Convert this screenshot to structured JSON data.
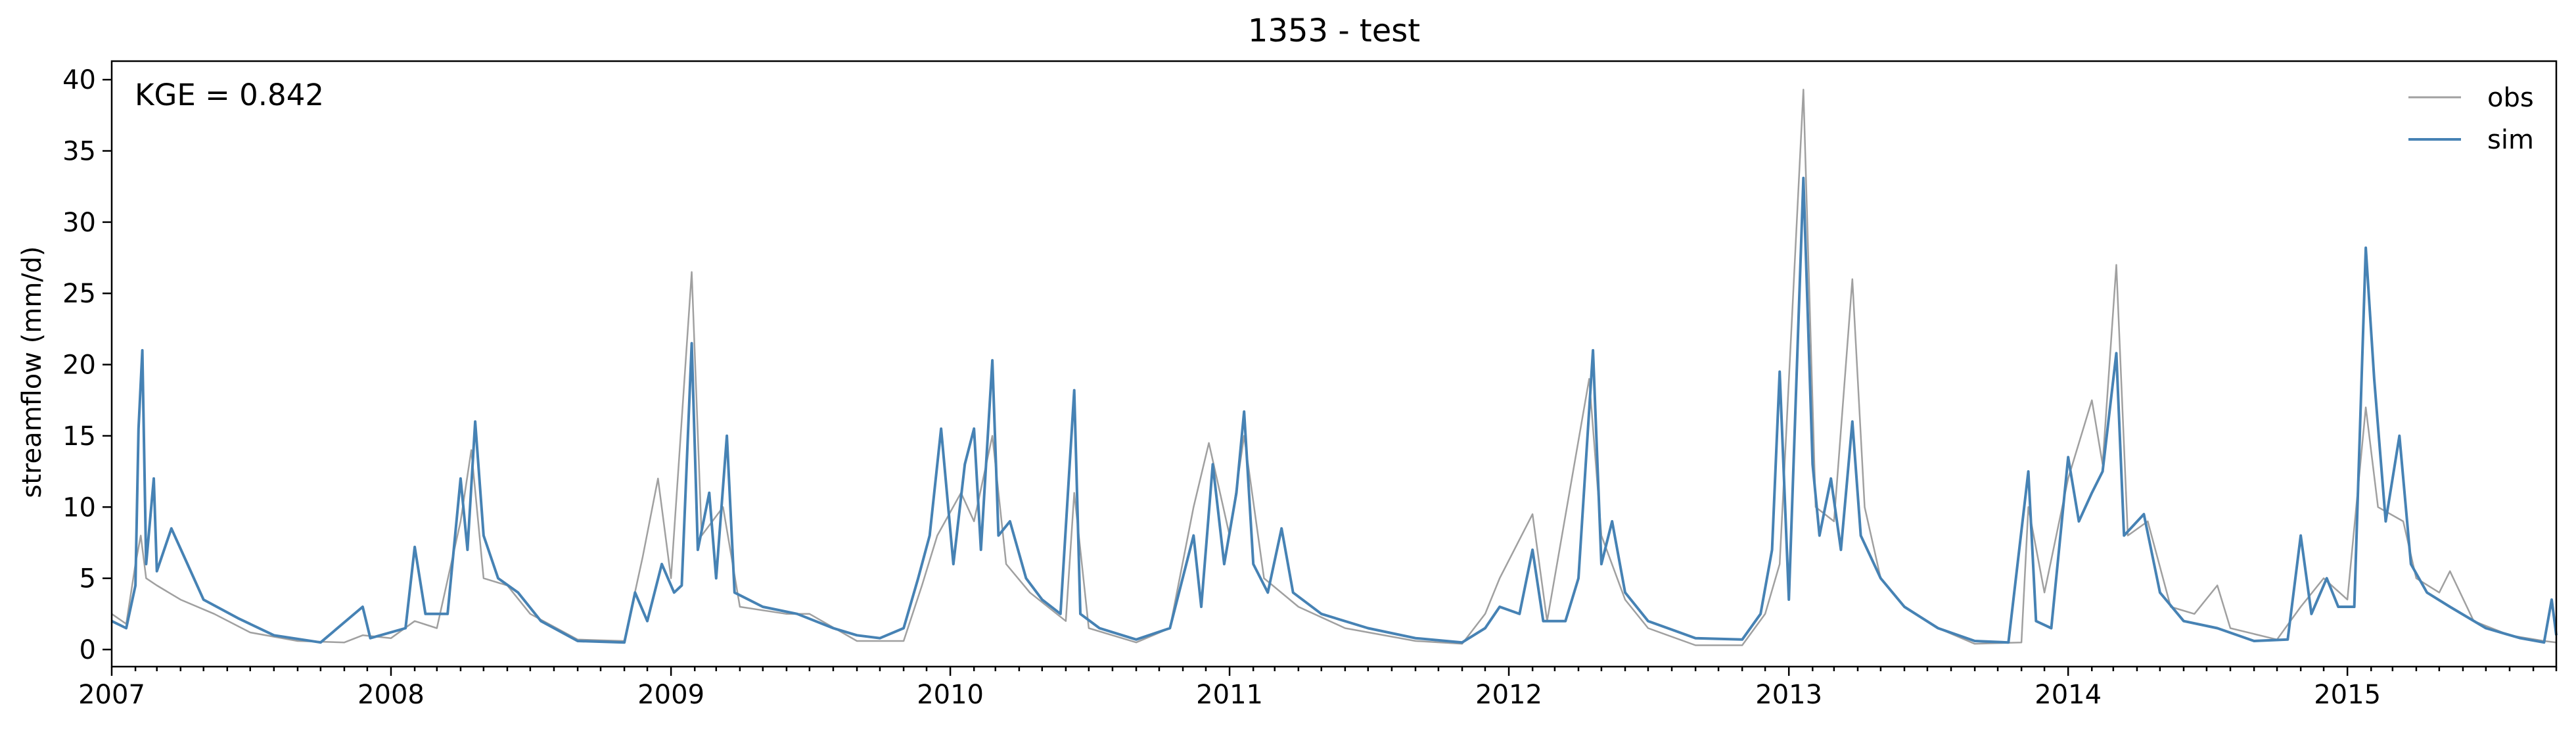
{
  "chart_data": {
    "type": "line",
    "title": "1353 - test",
    "ylabel": "streamflow (mm/d)",
    "xlabel": "",
    "annotation": "KGE = 0.842",
    "x_range": [
      "2007-01-01",
      "2015-10-01"
    ],
    "ylim": [
      -1.2,
      41.3
    ],
    "x_ticks": [
      "2007",
      "2008",
      "2009",
      "2010",
      "2011",
      "2012",
      "2013",
      "2014",
      "2015"
    ],
    "y_ticks": [
      "0",
      "5",
      "10",
      "15",
      "20",
      "25",
      "30",
      "35",
      "40"
    ],
    "y_tick_values": [
      0,
      5,
      10,
      15,
      20,
      25,
      30,
      35,
      40
    ],
    "legend_position": "top-right",
    "grid": false,
    "series": [
      {
        "name": "obs",
        "color": "#a0a0a0",
        "points": [
          [
            "2007-01-01",
            2.5
          ],
          [
            "2007-01-20",
            1.8
          ],
          [
            "2007-02-01",
            6
          ],
          [
            "2007-02-08",
            8
          ],
          [
            "2007-02-15",
            5
          ],
          [
            "2007-03-01",
            4.5
          ],
          [
            "2007-04-01",
            3.5
          ],
          [
            "2007-05-15",
            2.5
          ],
          [
            "2007-07-01",
            1.2
          ],
          [
            "2007-09-01",
            0.6
          ],
          [
            "2007-11-01",
            0.5
          ],
          [
            "2007-11-25",
            1.0
          ],
          [
            "2008-01-01",
            0.8
          ],
          [
            "2008-02-01",
            2.0
          ],
          [
            "2008-03-01",
            1.5
          ],
          [
            "2008-04-01",
            9
          ],
          [
            "2008-04-15",
            14
          ],
          [
            "2008-05-01",
            5
          ],
          [
            "2008-06-01",
            4.5
          ],
          [
            "2008-07-01",
            2.5
          ],
          [
            "2008-09-01",
            0.7
          ],
          [
            "2008-11-01",
            0.6
          ],
          [
            "2008-11-25",
            6.5
          ],
          [
            "2008-12-15",
            12
          ],
          [
            "2009-01-01",
            5
          ],
          [
            "2009-01-28",
            26.5
          ],
          [
            "2009-02-10",
            8
          ],
          [
            "2009-03-10",
            10
          ],
          [
            "2009-04-01",
            3
          ],
          [
            "2009-06-01",
            2.5
          ],
          [
            "2009-07-01",
            2.5
          ],
          [
            "2009-09-01",
            0.6
          ],
          [
            "2009-11-01",
            0.6
          ],
          [
            "2009-11-25",
            4.5
          ],
          [
            "2009-12-15",
            8
          ],
          [
            "2010-01-15",
            11
          ],
          [
            "2010-02-01",
            9
          ],
          [
            "2010-02-25",
            15
          ],
          [
            "2010-03-15",
            6
          ],
          [
            "2010-04-15",
            4
          ],
          [
            "2010-06-01",
            2
          ],
          [
            "2010-06-12",
            11
          ],
          [
            "2010-07-01",
            1.5
          ],
          [
            "2010-09-01",
            0.5
          ],
          [
            "2010-10-15",
            1.5
          ],
          [
            "2010-11-15",
            10
          ],
          [
            "2010-12-05",
            14.5
          ],
          [
            "2011-01-01",
            8
          ],
          [
            "2011-01-20",
            15
          ],
          [
            "2011-02-15",
            5
          ],
          [
            "2011-04-01",
            3
          ],
          [
            "2011-06-01",
            1.5
          ],
          [
            "2011-09-01",
            0.6
          ],
          [
            "2011-11-01",
            0.4
          ],
          [
            "2011-12-01",
            2.5
          ],
          [
            "2011-12-20",
            5
          ],
          [
            "2012-02-01",
            9.5
          ],
          [
            "2012-02-20",
            2
          ],
          [
            "2012-04-15",
            19
          ],
          [
            "2012-05-01",
            8
          ],
          [
            "2012-06-01",
            3.5
          ],
          [
            "2012-07-01",
            1.5
          ],
          [
            "2012-09-01",
            0.3
          ],
          [
            "2012-11-01",
            0.3
          ],
          [
            "2012-12-01",
            2.5
          ],
          [
            "2012-12-20",
            6
          ],
          [
            "2013-01-20",
            39.3
          ],
          [
            "2013-02-05",
            10
          ],
          [
            "2013-03-01",
            9
          ],
          [
            "2013-03-25",
            26
          ],
          [
            "2013-04-10",
            10
          ],
          [
            "2013-05-01",
            5
          ],
          [
            "2013-06-01",
            3
          ],
          [
            "2013-07-15",
            1.5
          ],
          [
            "2013-09-01",
            0.4
          ],
          [
            "2013-11-01",
            0.5
          ],
          [
            "2013-11-10",
            10
          ],
          [
            "2013-12-01",
            4
          ],
          [
            "2014-01-01",
            12
          ],
          [
            "2014-02-01",
            17.5
          ],
          [
            "2014-02-15",
            13
          ],
          [
            "2014-03-05",
            27
          ],
          [
            "2014-03-20",
            8
          ],
          [
            "2014-04-15",
            9
          ],
          [
            "2014-05-15",
            3
          ],
          [
            "2014-06-15",
            2.5
          ],
          [
            "2014-07-15",
            4.5
          ],
          [
            "2014-08-01",
            1.5
          ],
          [
            "2014-10-01",
            0.7
          ],
          [
            "2014-11-01",
            3
          ],
          [
            "2014-12-01",
            5
          ],
          [
            "2015-01-01",
            3.5
          ],
          [
            "2015-01-25",
            17
          ],
          [
            "2015-02-10",
            10
          ],
          [
            "2015-03-15",
            9
          ],
          [
            "2015-04-01",
            5
          ],
          [
            "2015-05-01",
            4
          ],
          [
            "2015-05-15",
            5.5
          ],
          [
            "2015-06-15",
            2
          ],
          [
            "2015-08-01",
            1
          ],
          [
            "2015-09-15",
            0.6
          ],
          [
            "2015-10-01",
            0.5
          ]
        ]
      },
      {
        "name": "sim",
        "color": "#4682b4",
        "points": [
          [
            "2007-01-01",
            2.0
          ],
          [
            "2007-01-20",
            1.5
          ],
          [
            "2007-02-01",
            4.5
          ],
          [
            "2007-02-05",
            15.5
          ],
          [
            "2007-02-10",
            21
          ],
          [
            "2007-02-15",
            6
          ],
          [
            "2007-02-25",
            12
          ],
          [
            "2007-03-01",
            5.5
          ],
          [
            "2007-03-20",
            8.5
          ],
          [
            "2007-04-10",
            6
          ],
          [
            "2007-05-01",
            3.5
          ],
          [
            "2007-06-15",
            2.2
          ],
          [
            "2007-08-01",
            1.0
          ],
          [
            "2007-10-01",
            0.5
          ],
          [
            "2007-11-25",
            3
          ],
          [
            "2007-12-05",
            0.8
          ],
          [
            "2008-01-20",
            1.5
          ],
          [
            "2008-02-01",
            7.2
          ],
          [
            "2008-02-15",
            2.5
          ],
          [
            "2008-03-15",
            2.5
          ],
          [
            "2008-04-01",
            12
          ],
          [
            "2008-04-10",
            7
          ],
          [
            "2008-04-20",
            16
          ],
          [
            "2008-05-01",
            8
          ],
          [
            "2008-05-20",
            5
          ],
          [
            "2008-06-15",
            4
          ],
          [
            "2008-07-15",
            2.0
          ],
          [
            "2008-09-01",
            0.6
          ],
          [
            "2008-11-01",
            0.5
          ],
          [
            "2008-11-15",
            4
          ],
          [
            "2008-12-01",
            2
          ],
          [
            "2008-12-20",
            6
          ],
          [
            "2009-01-05",
            4
          ],
          [
            "2009-01-15",
            4.5
          ],
          [
            "2009-01-28",
            21.5
          ],
          [
            "2009-02-05",
            7
          ],
          [
            "2009-02-20",
            11
          ],
          [
            "2009-03-01",
            5
          ],
          [
            "2009-03-15",
            15
          ],
          [
            "2009-03-25",
            4
          ],
          [
            "2009-05-01",
            3
          ],
          [
            "2009-06-15",
            2.5
          ],
          [
            "2009-08-01",
            1.5
          ],
          [
            "2009-09-01",
            1.0
          ],
          [
            "2009-10-01",
            0.8
          ],
          [
            "2009-11-01",
            1.5
          ],
          [
            "2009-11-20",
            5
          ],
          [
            "2009-12-05",
            8
          ],
          [
            "2009-12-20",
            15.5
          ],
          [
            "2010-01-05",
            6
          ],
          [
            "2010-01-20",
            13
          ],
          [
            "2010-02-01",
            15.5
          ],
          [
            "2010-02-10",
            7
          ],
          [
            "2010-02-25",
            20.3
          ],
          [
            "2010-03-05",
            8
          ],
          [
            "2010-03-20",
            9
          ],
          [
            "2010-04-10",
            5
          ],
          [
            "2010-05-01",
            3.5
          ],
          [
            "2010-05-25",
            2.5
          ],
          [
            "2010-06-12",
            18.2
          ],
          [
            "2010-06-20",
            2.5
          ],
          [
            "2010-07-15",
            1.5
          ],
          [
            "2010-09-01",
            0.7
          ],
          [
            "2010-10-15",
            1.5
          ],
          [
            "2010-11-15",
            8
          ],
          [
            "2010-11-25",
            3
          ],
          [
            "2010-12-10",
            13
          ],
          [
            "2010-12-25",
            6
          ],
          [
            "2011-01-10",
            11
          ],
          [
            "2011-01-20",
            16.7
          ],
          [
            "2011-02-01",
            6
          ],
          [
            "2011-02-20",
            4
          ],
          [
            "2011-03-10",
            8.5
          ],
          [
            "2011-03-25",
            4
          ],
          [
            "2011-05-01",
            2.5
          ],
          [
            "2011-07-01",
            1.5
          ],
          [
            "2011-09-01",
            0.8
          ],
          [
            "2011-11-01",
            0.5
          ],
          [
            "2011-12-01",
            1.5
          ],
          [
            "2011-12-20",
            3
          ],
          [
            "2012-01-15",
            2.5
          ],
          [
            "2012-02-01",
            7
          ],
          [
            "2012-02-15",
            2
          ],
          [
            "2012-03-15",
            2
          ],
          [
            "2012-04-01",
            5
          ],
          [
            "2012-04-20",
            21
          ],
          [
            "2012-05-01",
            6
          ],
          [
            "2012-05-15",
            9
          ],
          [
            "2012-06-01",
            4
          ],
          [
            "2012-07-01",
            2
          ],
          [
            "2012-09-01",
            0.8
          ],
          [
            "2012-11-01",
            0.7
          ],
          [
            "2012-11-25",
            2.5
          ],
          [
            "2012-12-10",
            7
          ],
          [
            "2012-12-20",
            19.5
          ],
          [
            "2013-01-01",
            3.5
          ],
          [
            "2013-01-20",
            33.1
          ],
          [
            "2013-02-01",
            13
          ],
          [
            "2013-02-10",
            8
          ],
          [
            "2013-02-25",
            12
          ],
          [
            "2013-03-10",
            7
          ],
          [
            "2013-03-25",
            16
          ],
          [
            "2013-04-05",
            8
          ],
          [
            "2013-05-01",
            5
          ],
          [
            "2013-06-01",
            3
          ],
          [
            "2013-07-15",
            1.5
          ],
          [
            "2013-09-01",
            0.6
          ],
          [
            "2013-10-15",
            0.5
          ],
          [
            "2013-11-10",
            12.5
          ],
          [
            "2013-11-20",
            2
          ],
          [
            "2013-12-10",
            1.5
          ],
          [
            "2014-01-01",
            13.5
          ],
          [
            "2014-01-15",
            9
          ],
          [
            "2014-02-01",
            11
          ],
          [
            "2014-02-15",
            12.5
          ],
          [
            "2014-03-05",
            20.8
          ],
          [
            "2014-03-15",
            8
          ],
          [
            "2014-04-10",
            9.5
          ],
          [
            "2014-05-01",
            4
          ],
          [
            "2014-06-01",
            2
          ],
          [
            "2014-07-15",
            1.5
          ],
          [
            "2014-09-01",
            0.6
          ],
          [
            "2014-10-15",
            0.7
          ],
          [
            "2014-11-01",
            8
          ],
          [
            "2014-11-15",
            2.5
          ],
          [
            "2014-12-05",
            5
          ],
          [
            "2014-12-20",
            3
          ],
          [
            "2015-01-10",
            3
          ],
          [
            "2015-01-25",
            28.2
          ],
          [
            "2015-02-05",
            19
          ],
          [
            "2015-02-20",
            9
          ],
          [
            "2015-03-10",
            15
          ],
          [
            "2015-03-25",
            6
          ],
          [
            "2015-04-15",
            4
          ],
          [
            "2015-05-15",
            3
          ],
          [
            "2015-07-01",
            1.5
          ],
          [
            "2015-08-15",
            0.8
          ],
          [
            "2015-09-15",
            0.5
          ],
          [
            "2015-09-25",
            3.5
          ],
          [
            "2015-10-01",
            1.0
          ]
        ]
      }
    ]
  }
}
